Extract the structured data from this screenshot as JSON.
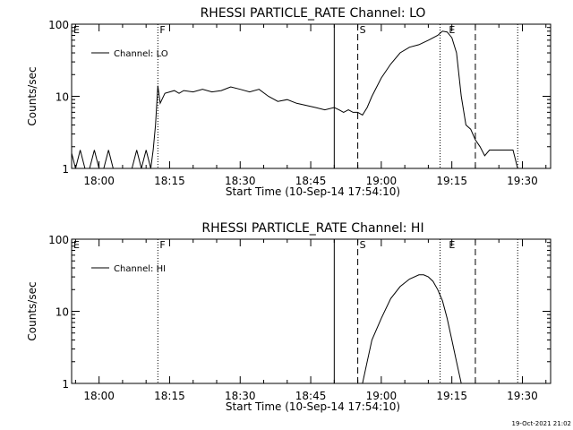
{
  "timestamp": "19-Oct-2021 21:02",
  "colors": {
    "background": "#ffffff",
    "foreground": "#000000"
  },
  "chart_data": [
    {
      "type": "line",
      "title": "RHESSI PARTICLE_RATE Channel: LO",
      "xlabel": "Start Time (10-Sep-14 17:54:10)",
      "ylabel": "Counts/sec",
      "y_scale": "log",
      "xlim": [
        "17:54:10",
        "19:36:00"
      ],
      "ylim": [
        1,
        100
      ],
      "x_ticks": [
        "18:00",
        "18:15",
        "18:30",
        "18:45",
        "19:00",
        "19:15",
        "19:30"
      ],
      "y_ticks": [
        "1",
        "10",
        "100"
      ],
      "grid": false,
      "legend_position": "top-left",
      "series": [
        {
          "name": "Channel: LO",
          "x": [
            "17:54",
            "17:55",
            "17:56",
            "17:57",
            "17:58",
            "17:59",
            "18:00",
            "18:01",
            "18:02",
            "18:03",
            "18:04",
            "18:05",
            "18:06",
            "18:07",
            "18:08",
            "18:09",
            "18:10",
            "18:11",
            "18:11:30",
            "18:12",
            "18:12:30",
            "18:13",
            "18:14",
            "18:15",
            "18:16",
            "18:17",
            "18:18",
            "18:20",
            "18:22",
            "18:24",
            "18:26",
            "18:28",
            "18:30",
            "18:32",
            "18:34",
            "18:36",
            "18:38",
            "18:40",
            "18:42",
            "18:44",
            "18:46",
            "18:48",
            "18:50",
            "18:51",
            "18:52",
            "18:53",
            "18:54",
            "18:55",
            "18:56",
            "18:57",
            "18:58",
            "19:00",
            "19:02",
            "19:04",
            "19:06",
            "19:08",
            "19:10",
            "19:12",
            "19:13",
            "19:14",
            "19:15",
            "19:16",
            "19:17",
            "19:18",
            "19:19",
            "19:20",
            "19:21",
            "19:22",
            "19:23",
            "19:24",
            "19:25",
            "19:26",
            "19:27",
            "19:28",
            "19:29"
          ],
          "values": [
            1.8,
            1.0,
            1.8,
            1.0,
            1.0,
            1.8,
            1.0,
            1.0,
            1.8,
            1.0,
            1.0,
            1.0,
            1.0,
            1.0,
            1.8,
            1.0,
            1.8,
            1.0,
            1.8,
            4.0,
            14.0,
            8.0,
            11.0,
            11.5,
            12.0,
            11.0,
            12.0,
            11.5,
            12.5,
            11.5,
            12.0,
            13.5,
            12.5,
            11.5,
            12.5,
            10.0,
            8.5,
            9.0,
            8.0,
            7.5,
            7.0,
            6.5,
            7.0,
            6.5,
            6.0,
            6.5,
            6.0,
            6.0,
            5.5,
            7.0,
            10.0,
            18.0,
            28.0,
            40.0,
            48.0,
            52.0,
            60.0,
            70.0,
            80.0,
            78.0,
            65.0,
            40.0,
            10.0,
            4.0,
            3.5,
            2.5,
            2.0,
            1.5,
            1.8,
            1.8,
            1.8,
            1.8,
            1.8,
            1.8,
            1.0
          ]
        }
      ],
      "annotations": [
        {
          "label": "E",
          "time": "17:54:10",
          "style": "none"
        },
        {
          "label": "F",
          "time": "18:12:30",
          "style": "dotted"
        },
        {
          "label": "",
          "time": "18:50:00",
          "style": "solid"
        },
        {
          "label": "S",
          "time": "18:55:00",
          "style": "dashed"
        },
        {
          "label": "",
          "time": "19:12:30",
          "style": "dotted"
        },
        {
          "label": "E",
          "time": "19:14:00",
          "style": "none"
        },
        {
          "label": "",
          "time": "19:20:00",
          "style": "dashed"
        },
        {
          "label": "",
          "time": "19:29:00",
          "style": "dotted"
        }
      ]
    },
    {
      "type": "line",
      "title": "RHESSI PARTICLE_RATE Channel: HI",
      "xlabel": "Start Time (10-Sep-14 17:54:10)",
      "ylabel": "Counts/sec",
      "y_scale": "log",
      "xlim": [
        "17:54:10",
        "19:36:00"
      ],
      "ylim": [
        1,
        100
      ],
      "x_ticks": [
        "18:00",
        "18:15",
        "18:30",
        "18:45",
        "19:00",
        "19:15",
        "19:30"
      ],
      "y_ticks": [
        "1",
        "10",
        "100"
      ],
      "grid": false,
      "legend_position": "top-left",
      "series": [
        {
          "name": "Channel: HI",
          "x": [
            "18:56",
            "18:57",
            "18:58",
            "19:00",
            "19:02",
            "19:04",
            "19:06",
            "19:08",
            "19:09",
            "19:10",
            "19:11",
            "19:12",
            "19:13",
            "19:14",
            "19:15",
            "19:16",
            "19:17"
          ],
          "values": [
            1.0,
            2.0,
            4.0,
            8.0,
            15.0,
            22.0,
            28.0,
            32.0,
            32.0,
            30.0,
            26.0,
            20.0,
            14.0,
            8.0,
            4.0,
            2.0,
            1.0
          ]
        }
      ],
      "annotations": [
        {
          "label": "E",
          "time": "17:54:10",
          "style": "none"
        },
        {
          "label": "F",
          "time": "18:12:30",
          "style": "dotted"
        },
        {
          "label": "",
          "time": "18:50:00",
          "style": "solid"
        },
        {
          "label": "S",
          "time": "18:55:00",
          "style": "dashed"
        },
        {
          "label": "",
          "time": "19:12:30",
          "style": "dotted"
        },
        {
          "label": "E",
          "time": "19:14:00",
          "style": "none"
        },
        {
          "label": "",
          "time": "19:20:00",
          "style": "dashed"
        },
        {
          "label": "",
          "time": "19:29:00",
          "style": "dotted"
        }
      ]
    }
  ]
}
